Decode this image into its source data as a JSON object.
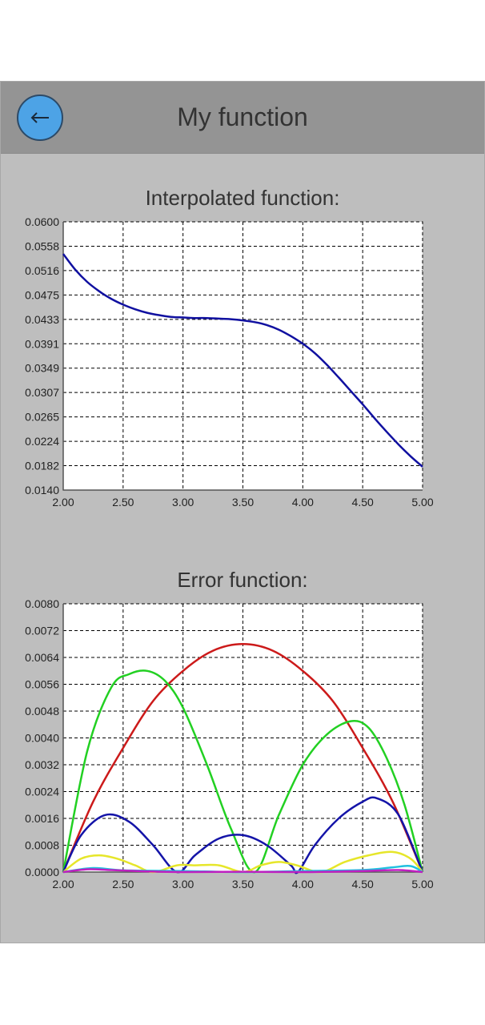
{
  "header": {
    "title": "My function",
    "back_icon": "left-arrow-icon"
  },
  "colors": {
    "toolbar": "#949494",
    "background": "#bebebe",
    "back_button": "#4da3e6",
    "plot_bg": "#ffffff"
  },
  "chart_data": [
    {
      "type": "line",
      "title": "Interpolated function:",
      "xlim": [
        2.0,
        5.0
      ],
      "ylim": [
        0.014,
        0.06
      ],
      "x_ticks": [
        "2.00",
        "2.50",
        "3.00",
        "3.50",
        "4.00",
        "4.50",
        "5.00"
      ],
      "y_ticks": [
        "0.0140",
        "0.0182",
        "0.0224",
        "0.0265",
        "0.0307",
        "0.0349",
        "0.0391",
        "0.0433",
        "0.0475",
        "0.0516",
        "0.0558",
        "0.0600"
      ],
      "grid": true,
      "series": [
        {
          "color": "#1010a0",
          "x": [
            2.0,
            2.1,
            2.2,
            2.3,
            2.4,
            2.5,
            2.6,
            2.7,
            2.8,
            2.9,
            3.0,
            3.1,
            3.2,
            3.3,
            3.4,
            3.5,
            3.6,
            3.7,
            3.8,
            3.9,
            4.0,
            4.1,
            4.2,
            4.3,
            4.4,
            4.5,
            4.6,
            4.7,
            4.8,
            4.9,
            5.0
          ],
          "y": [
            0.0545,
            0.0518,
            0.0497,
            0.0481,
            0.0468,
            0.0458,
            0.045,
            0.0444,
            0.044,
            0.0437,
            0.0436,
            0.0435,
            0.0435,
            0.0434,
            0.0433,
            0.0431,
            0.0428,
            0.0423,
            0.0415,
            0.0404,
            0.0391,
            0.0375,
            0.0355,
            0.0333,
            0.031,
            0.0287,
            0.0263,
            0.024,
            0.0218,
            0.0198,
            0.018
          ]
        }
      ]
    },
    {
      "type": "line",
      "title": "Error function:",
      "xlim": [
        2.0,
        5.0
      ],
      "ylim": [
        0.0,
        0.008
      ],
      "x_ticks": [
        "2.00",
        "2.50",
        "3.00",
        "3.50",
        "4.00",
        "4.50",
        "5.00"
      ],
      "y_ticks": [
        "0.0000",
        "0.0008",
        "0.0016",
        "0.0024",
        "0.0032",
        "0.0040",
        "0.0048",
        "0.0056",
        "0.0064",
        "0.0072",
        "0.0080"
      ],
      "grid": true,
      "series": [
        {
          "color": "#cc1a1a",
          "x": [
            2.0,
            2.25,
            2.5,
            2.75,
            3.0,
            3.25,
            3.5,
            3.75,
            4.0,
            4.25,
            4.5,
            4.75,
            5.0
          ],
          "y": [
            0.0,
            0.0021,
            0.0037,
            0.0051,
            0.006,
            0.0066,
            0.0068,
            0.0066,
            0.006,
            0.0051,
            0.0037,
            0.0021,
            0.0
          ]
        },
        {
          "color": "#22d022",
          "x": [
            2.0,
            2.2,
            2.4,
            2.55,
            2.7,
            2.85,
            3.0,
            3.2,
            3.4,
            3.6,
            3.8,
            4.0,
            4.2,
            4.4,
            4.55,
            4.7,
            4.85,
            5.0
          ],
          "y": [
            0.0,
            0.0036,
            0.0055,
            0.0059,
            0.006,
            0.0057,
            0.0049,
            0.0032,
            0.0013,
            0.0,
            0.0017,
            0.0032,
            0.0041,
            0.0045,
            0.0043,
            0.0034,
            0.002,
            0.0
          ]
        },
        {
          "color": "#1414a8",
          "x": [
            2.0,
            2.15,
            2.35,
            2.55,
            2.75,
            2.95,
            3.1,
            3.3,
            3.5,
            3.7,
            3.9,
            3.96,
            4.1,
            4.3,
            4.5,
            4.62,
            4.8,
            5.0
          ],
          "y": [
            0.0,
            0.0011,
            0.0017,
            0.0015,
            0.0008,
            0.0,
            0.0005,
            0.001,
            0.0011,
            0.0008,
            0.0002,
            0.0,
            0.0008,
            0.0016,
            0.0021,
            0.0022,
            0.0017,
            0.0
          ]
        },
        {
          "color": "#e6e62a",
          "x": [
            2.0,
            2.15,
            2.3,
            2.45,
            2.6,
            2.75,
            2.95,
            3.1,
            3.3,
            3.5,
            3.65,
            3.8,
            3.95,
            4.15,
            4.35,
            4.55,
            4.75,
            4.9,
            5.0
          ],
          "y": [
            0.0,
            0.0004,
            0.0005,
            0.0004,
            0.0002,
            0.0,
            0.0002,
            0.0002,
            0.0002,
            0.0,
            0.0002,
            0.0003,
            0.0002,
            0.0,
            0.0003,
            0.0005,
            0.0006,
            0.0004,
            0.0
          ]
        },
        {
          "color": "#20c0e0",
          "x": [
            2.0,
            2.25,
            2.5,
            3.0,
            3.5,
            4.0,
            4.5,
            4.75,
            4.9,
            5.0
          ],
          "y": [
            0.0,
            0.00012,
            5e-05,
            3e-05,
            0.0,
            3e-05,
            6e-05,
            0.00014,
            0.00018,
            0.0
          ]
        },
        {
          "color": "#c020c0",
          "x": [
            2.0,
            2.2,
            2.4,
            2.7,
            3.0,
            3.5,
            4.0,
            4.5,
            4.8,
            5.0
          ],
          "y": [
            0.0,
            8e-05,
            6e-05,
            2e-05,
            0.0,
            1e-05,
            0.0,
            3e-05,
            6e-05,
            0.0
          ]
        }
      ]
    }
  ]
}
